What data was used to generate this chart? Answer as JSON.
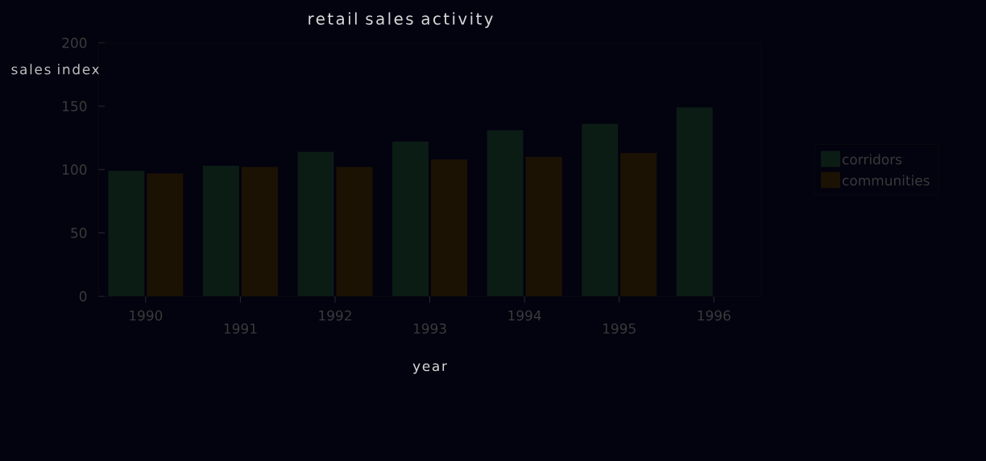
{
  "chart_data": {
    "type": "bar",
    "title": "retail sales activity",
    "xlabel": "year",
    "ylabel": "sales index",
    "categories": [
      "1990",
      "1991",
      "1992",
      "1993",
      "1994",
      "1995",
      "1996"
    ],
    "series": [
      {
        "name": "corridors",
        "color": "#0b1c15",
        "values": [
          99,
          103,
          114,
          122,
          131,
          136,
          149
        ]
      },
      {
        "name": "communities",
        "color": "#1c1204",
        "values": [
          97,
          102,
          102,
          108,
          110,
          113,
          null
        ]
      }
    ],
    "ylim": [
      0,
      200
    ],
    "yticks": [
      0,
      50,
      100,
      150,
      200
    ],
    "grid": false,
    "legend": "right"
  }
}
